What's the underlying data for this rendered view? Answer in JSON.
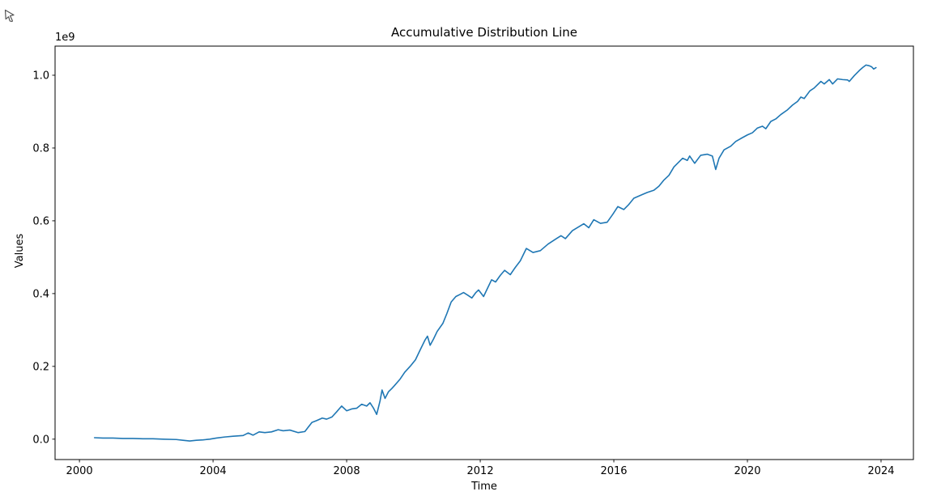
{
  "window": {
    "cursor_icon": "arrow-pointer"
  },
  "chart_data": {
    "type": "line",
    "title": "Accumulative Distribution Line",
    "xlabel": "Time",
    "ylabel": "Values",
    "y_offset_label": "1e9",
    "grid": false,
    "legend": null,
    "box_spines": true,
    "line_color": "#1f77b4",
    "xlim": [
      1999.27,
      2024.97
    ],
    "ylim": [
      -0.056,
      1.08
    ],
    "x_ticks": [
      2000,
      2004,
      2008,
      2012,
      2016,
      2020,
      2024
    ],
    "y_ticks": [
      "0.0",
      "0.2",
      "0.4",
      "0.6",
      "0.8",
      "1.0"
    ],
    "y_unit_multiplier": 1000000000,
    "series": [
      {
        "name": "accumulative-distribution-line",
        "color": "#1f77b4",
        "points_note": "x = year (decimal), y = value in units of 1e9",
        "points": [
          [
            2000.45,
            0.004
          ],
          [
            2000.7,
            0.003
          ],
          [
            2001.0,
            0.003
          ],
          [
            2001.3,
            0.002
          ],
          [
            2001.6,
            0.002
          ],
          [
            2001.9,
            0.001
          ],
          [
            2002.2,
            0.001
          ],
          [
            2002.5,
            0.0
          ],
          [
            2002.9,
            -0.001
          ],
          [
            2003.1,
            -0.003
          ],
          [
            2003.3,
            -0.005
          ],
          [
            2003.5,
            -0.003
          ],
          [
            2003.7,
            -0.002
          ],
          [
            2003.9,
            0.0
          ],
          [
            2004.1,
            0.003
          ],
          [
            2004.35,
            0.006
          ],
          [
            2004.6,
            0.008
          ],
          [
            2004.9,
            0.01
          ],
          [
            2005.05,
            0.017
          ],
          [
            2005.2,
            0.011
          ],
          [
            2005.38,
            0.02
          ],
          [
            2005.55,
            0.018
          ],
          [
            2005.75,
            0.02
          ],
          [
            2005.95,
            0.026
          ],
          [
            2006.1,
            0.023
          ],
          [
            2006.3,
            0.025
          ],
          [
            2006.55,
            0.018
          ],
          [
            2006.75,
            0.021
          ],
          [
            2006.96,
            0.046
          ],
          [
            2007.1,
            0.051
          ],
          [
            2007.27,
            0.058
          ],
          [
            2007.4,
            0.055
          ],
          [
            2007.56,
            0.061
          ],
          [
            2007.7,
            0.075
          ],
          [
            2007.85,
            0.091
          ],
          [
            2008.0,
            0.078
          ],
          [
            2008.15,
            0.083
          ],
          [
            2008.3,
            0.085
          ],
          [
            2008.45,
            0.096
          ],
          [
            2008.6,
            0.091
          ],
          [
            2008.7,
            0.1
          ],
          [
            2008.8,
            0.086
          ],
          [
            2008.9,
            0.068
          ],
          [
            2009.0,
            0.105
          ],
          [
            2009.06,
            0.135
          ],
          [
            2009.15,
            0.112
          ],
          [
            2009.25,
            0.13
          ],
          [
            2009.35,
            0.139
          ],
          [
            2009.43,
            0.147
          ],
          [
            2009.6,
            0.165
          ],
          [
            2009.74,
            0.184
          ],
          [
            2009.9,
            0.2
          ],
          [
            2010.06,
            0.218
          ],
          [
            2010.2,
            0.245
          ],
          [
            2010.35,
            0.273
          ],
          [
            2010.42,
            0.283
          ],
          [
            2010.5,
            0.258
          ],
          [
            2010.6,
            0.275
          ],
          [
            2010.71,
            0.296
          ],
          [
            2010.88,
            0.318
          ],
          [
            2011.0,
            0.345
          ],
          [
            2011.13,
            0.377
          ],
          [
            2011.27,
            0.392
          ],
          [
            2011.4,
            0.398
          ],
          [
            2011.5,
            0.403
          ],
          [
            2011.62,
            0.396
          ],
          [
            2011.75,
            0.388
          ],
          [
            2011.87,
            0.403
          ],
          [
            2011.95,
            0.41
          ],
          [
            2012.1,
            0.392
          ],
          [
            2012.22,
            0.415
          ],
          [
            2012.34,
            0.438
          ],
          [
            2012.46,
            0.432
          ],
          [
            2012.6,
            0.45
          ],
          [
            2012.73,
            0.464
          ],
          [
            2012.9,
            0.452
          ],
          [
            2013.05,
            0.472
          ],
          [
            2013.2,
            0.49
          ],
          [
            2013.38,
            0.524
          ],
          [
            2013.58,
            0.513
          ],
          [
            2013.8,
            0.518
          ],
          [
            2014.03,
            0.536
          ],
          [
            2014.28,
            0.551
          ],
          [
            2014.42,
            0.559
          ],
          [
            2014.55,
            0.551
          ],
          [
            2014.76,
            0.573
          ],
          [
            2014.96,
            0.584
          ],
          [
            2015.1,
            0.592
          ],
          [
            2015.25,
            0.581
          ],
          [
            2015.4,
            0.603
          ],
          [
            2015.6,
            0.593
          ],
          [
            2015.8,
            0.596
          ],
          [
            2015.97,
            0.618
          ],
          [
            2016.12,
            0.639
          ],
          [
            2016.3,
            0.631
          ],
          [
            2016.45,
            0.645
          ],
          [
            2016.6,
            0.662
          ],
          [
            2016.85,
            0.672
          ],
          [
            2017.0,
            0.678
          ],
          [
            2017.2,
            0.684
          ],
          [
            2017.35,
            0.695
          ],
          [
            2017.5,
            0.712
          ],
          [
            2017.65,
            0.725
          ],
          [
            2017.8,
            0.748
          ],
          [
            2018.06,
            0.772
          ],
          [
            2018.2,
            0.766
          ],
          [
            2018.27,
            0.778
          ],
          [
            2018.42,
            0.758
          ],
          [
            2018.6,
            0.78
          ],
          [
            2018.8,
            0.783
          ],
          [
            2018.95,
            0.778
          ],
          [
            2019.05,
            0.741
          ],
          [
            2019.15,
            0.772
          ],
          [
            2019.3,
            0.795
          ],
          [
            2019.5,
            0.805
          ],
          [
            2019.65,
            0.818
          ],
          [
            2019.8,
            0.826
          ],
          [
            2020.0,
            0.836
          ],
          [
            2020.15,
            0.842
          ],
          [
            2020.3,
            0.855
          ],
          [
            2020.45,
            0.86
          ],
          [
            2020.55,
            0.853
          ],
          [
            2020.7,
            0.873
          ],
          [
            2020.85,
            0.88
          ],
          [
            2021.0,
            0.892
          ],
          [
            2021.2,
            0.905
          ],
          [
            2021.35,
            0.918
          ],
          [
            2021.5,
            0.928
          ],
          [
            2021.6,
            0.94
          ],
          [
            2021.7,
            0.936
          ],
          [
            2021.87,
            0.957
          ],
          [
            2022.0,
            0.965
          ],
          [
            2022.2,
            0.983
          ],
          [
            2022.3,
            0.976
          ],
          [
            2022.45,
            0.988
          ],
          [
            2022.55,
            0.976
          ],
          [
            2022.7,
            0.99
          ],
          [
            2022.85,
            0.988
          ],
          [
            2023.0,
            0.987
          ],
          [
            2023.05,
            0.983
          ],
          [
            2023.2,
            0.999
          ],
          [
            2023.35,
            1.013
          ],
          [
            2023.45,
            1.021
          ],
          [
            2023.55,
            1.028
          ],
          [
            2023.65,
            1.026
          ],
          [
            2023.72,
            1.023
          ],
          [
            2023.78,
            1.017
          ],
          [
            2023.85,
            1.021
          ]
        ]
      }
    ]
  }
}
